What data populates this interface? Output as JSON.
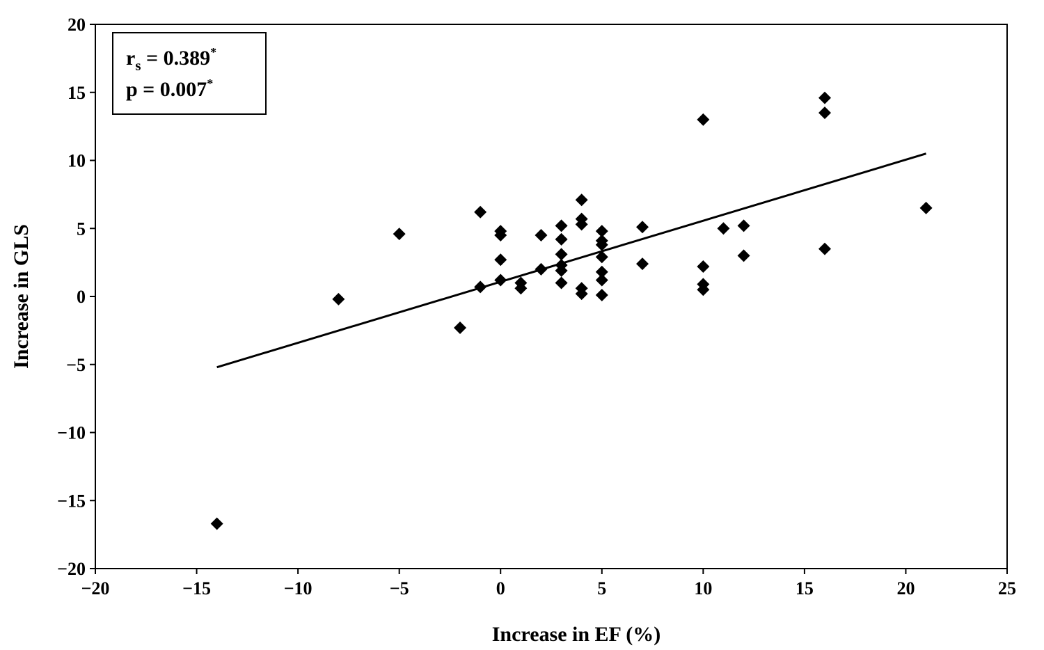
{
  "chart_data": {
    "type": "scatter",
    "xlabel": "Increase in EF (%)",
    "ylabel": "Increase in GLS",
    "xlim": [
      -20,
      25
    ],
    "ylim": [
      -20,
      20
    ],
    "x_ticks": [
      "-20",
      "-15",
      "-10",
      "-5",
      "0",
      "5",
      "10",
      "15",
      "20",
      "25"
    ],
    "y_ticks": [
      "20",
      "15",
      "10",
      "5",
      "0",
      "-5",
      "-10",
      "-15",
      "-20"
    ],
    "grid": false,
    "marker": "diamond",
    "marker_color": "#000000",
    "points": [
      {
        "x": -14,
        "y": -16.7
      },
      {
        "x": -8,
        "y": -0.2
      },
      {
        "x": -5,
        "y": 4.6
      },
      {
        "x": -2,
        "y": -2.3
      },
      {
        "x": -1,
        "y": 6.2
      },
      {
        "x": -1,
        "y": 0.7
      },
      {
        "x": 0,
        "y": 4.8
      },
      {
        "x": 0,
        "y": 4.5
      },
      {
        "x": 0,
        "y": 2.7
      },
      {
        "x": 0,
        "y": 1.2
      },
      {
        "x": 1,
        "y": 1.0
      },
      {
        "x": 1,
        "y": 0.6
      },
      {
        "x": 2,
        "y": 4.5
      },
      {
        "x": 2,
        "y": 2.0
      },
      {
        "x": 3,
        "y": 5.2
      },
      {
        "x": 3,
        "y": 4.2
      },
      {
        "x": 3,
        "y": 3.1
      },
      {
        "x": 3,
        "y": 2.3
      },
      {
        "x": 3,
        "y": 1.9
      },
      {
        "x": 3,
        "y": 1.0
      },
      {
        "x": 4,
        "y": 7.1
      },
      {
        "x": 4,
        "y": 5.7
      },
      {
        "x": 4,
        "y": 5.3
      },
      {
        "x": 4,
        "y": 0.6
      },
      {
        "x": 4,
        "y": 0.2
      },
      {
        "x": 5,
        "y": 4.8
      },
      {
        "x": 5,
        "y": 4.1
      },
      {
        "x": 5,
        "y": 3.8
      },
      {
        "x": 5,
        "y": 2.9
      },
      {
        "x": 5,
        "y": 1.8
      },
      {
        "x": 5,
        "y": 1.2
      },
      {
        "x": 5,
        "y": 0.1
      },
      {
        "x": 7,
        "y": 5.1
      },
      {
        "x": 7,
        "y": 2.4
      },
      {
        "x": 10,
        "y": 13.0
      },
      {
        "x": 10,
        "y": 2.2
      },
      {
        "x": 10,
        "y": 0.9
      },
      {
        "x": 10,
        "y": 0.5
      },
      {
        "x": 11,
        "y": 5.0
      },
      {
        "x": 12,
        "y": 5.2
      },
      {
        "x": 12,
        "y": 3.0
      },
      {
        "x": 16,
        "y": 14.6
      },
      {
        "x": 16,
        "y": 13.5
      },
      {
        "x": 16,
        "y": 3.5
      },
      {
        "x": 21,
        "y": 6.5
      }
    ],
    "trendline": {
      "x": [
        -14,
        21
      ],
      "y": [
        -5.2,
        10.5
      ]
    },
    "annotation": {
      "line1": {
        "prefix": "r",
        "sub": "s",
        "body": " = 0.389",
        "sup": "*"
      },
      "line2": {
        "body": "p = 0.007",
        "sup": "*"
      }
    }
  }
}
